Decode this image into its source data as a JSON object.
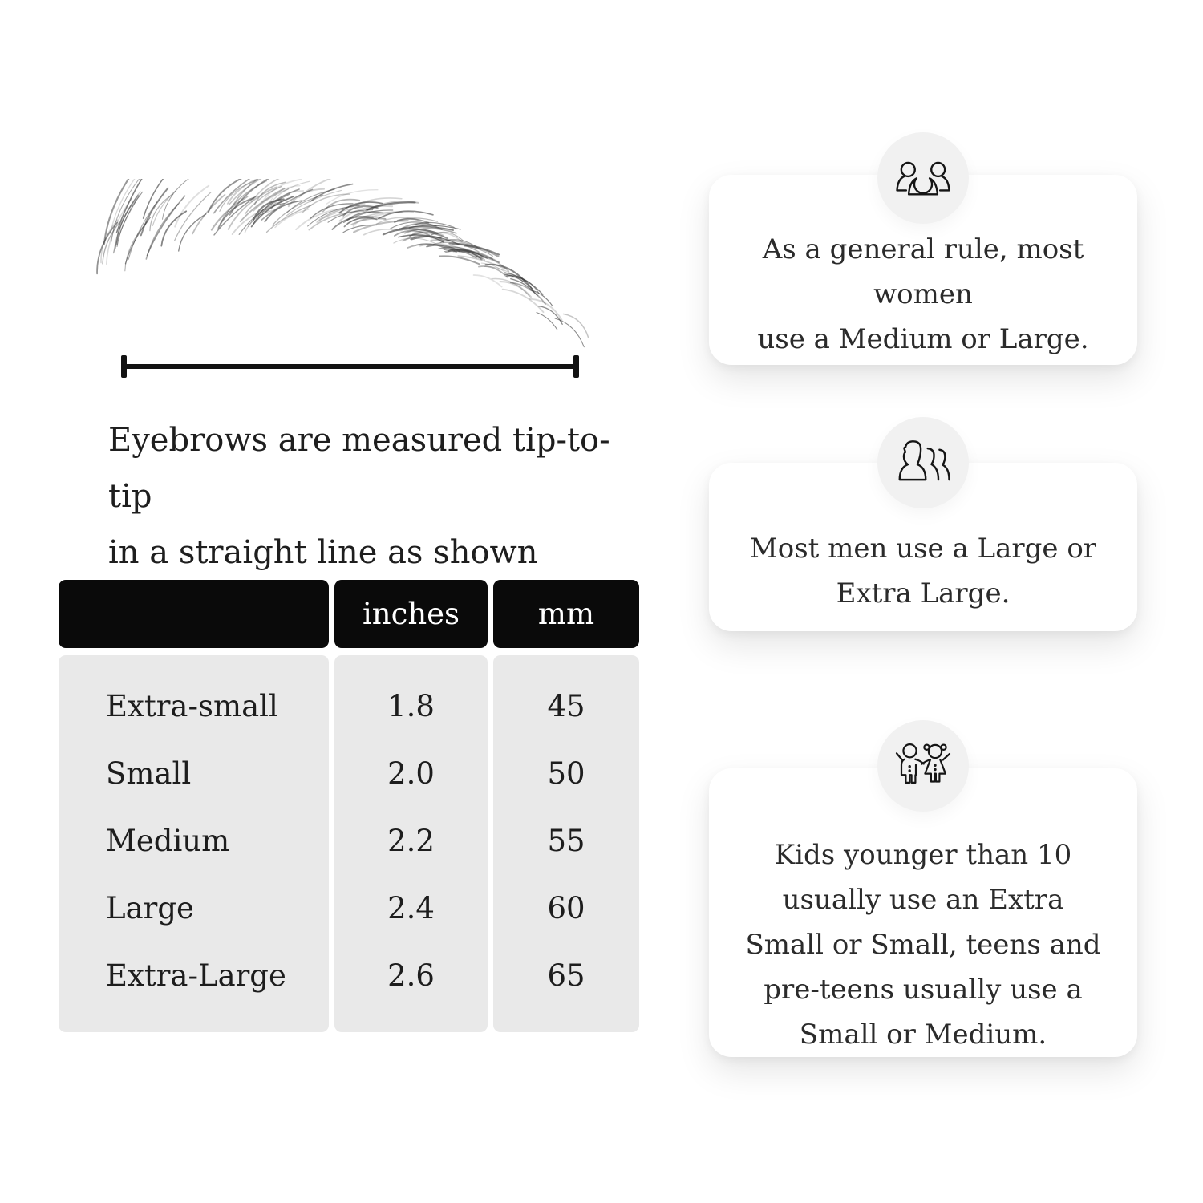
{
  "page": {
    "background": "#ffffff"
  },
  "measurement": {
    "caption_lines": [
      "Eyebrows are measured tip-to-tip",
      "in a straight line as shown above."
    ],
    "illustration": "hand-drawn-eyebrow",
    "line_color": "#121212"
  },
  "size_table": {
    "columns": [
      "",
      "inches",
      "mm"
    ],
    "rows": [
      {
        "label": "Extra-small",
        "inches": "1.8",
        "mm": "45"
      },
      {
        "label": "Small",
        "inches": "2.0",
        "mm": "50"
      },
      {
        "label": "Medium",
        "inches": "2.2",
        "mm": "55"
      },
      {
        "label": "Large",
        "inches": "2.4",
        "mm": "60"
      },
      {
        "label": "Extra-Large",
        "inches": "2.6",
        "mm": "65"
      }
    ],
    "header_bg": "#0a0a0a",
    "header_text_color": "#ffffff",
    "body_bg": "#e9e9e9"
  },
  "tips": [
    {
      "icon": "women-group-icon",
      "lines": [
        "As a general rule, most women",
        "use a Medium or Large."
      ]
    },
    {
      "icon": "men-group-icon",
      "lines": [
        "Most men use a Large or",
        "Extra Large."
      ]
    },
    {
      "icon": "kids-icon",
      "lines": [
        "Kids younger than 10",
        "usually use an Extra",
        "Small or Small, teens and",
        "pre-teens usually use a",
        "Small or Medium."
      ]
    }
  ]
}
